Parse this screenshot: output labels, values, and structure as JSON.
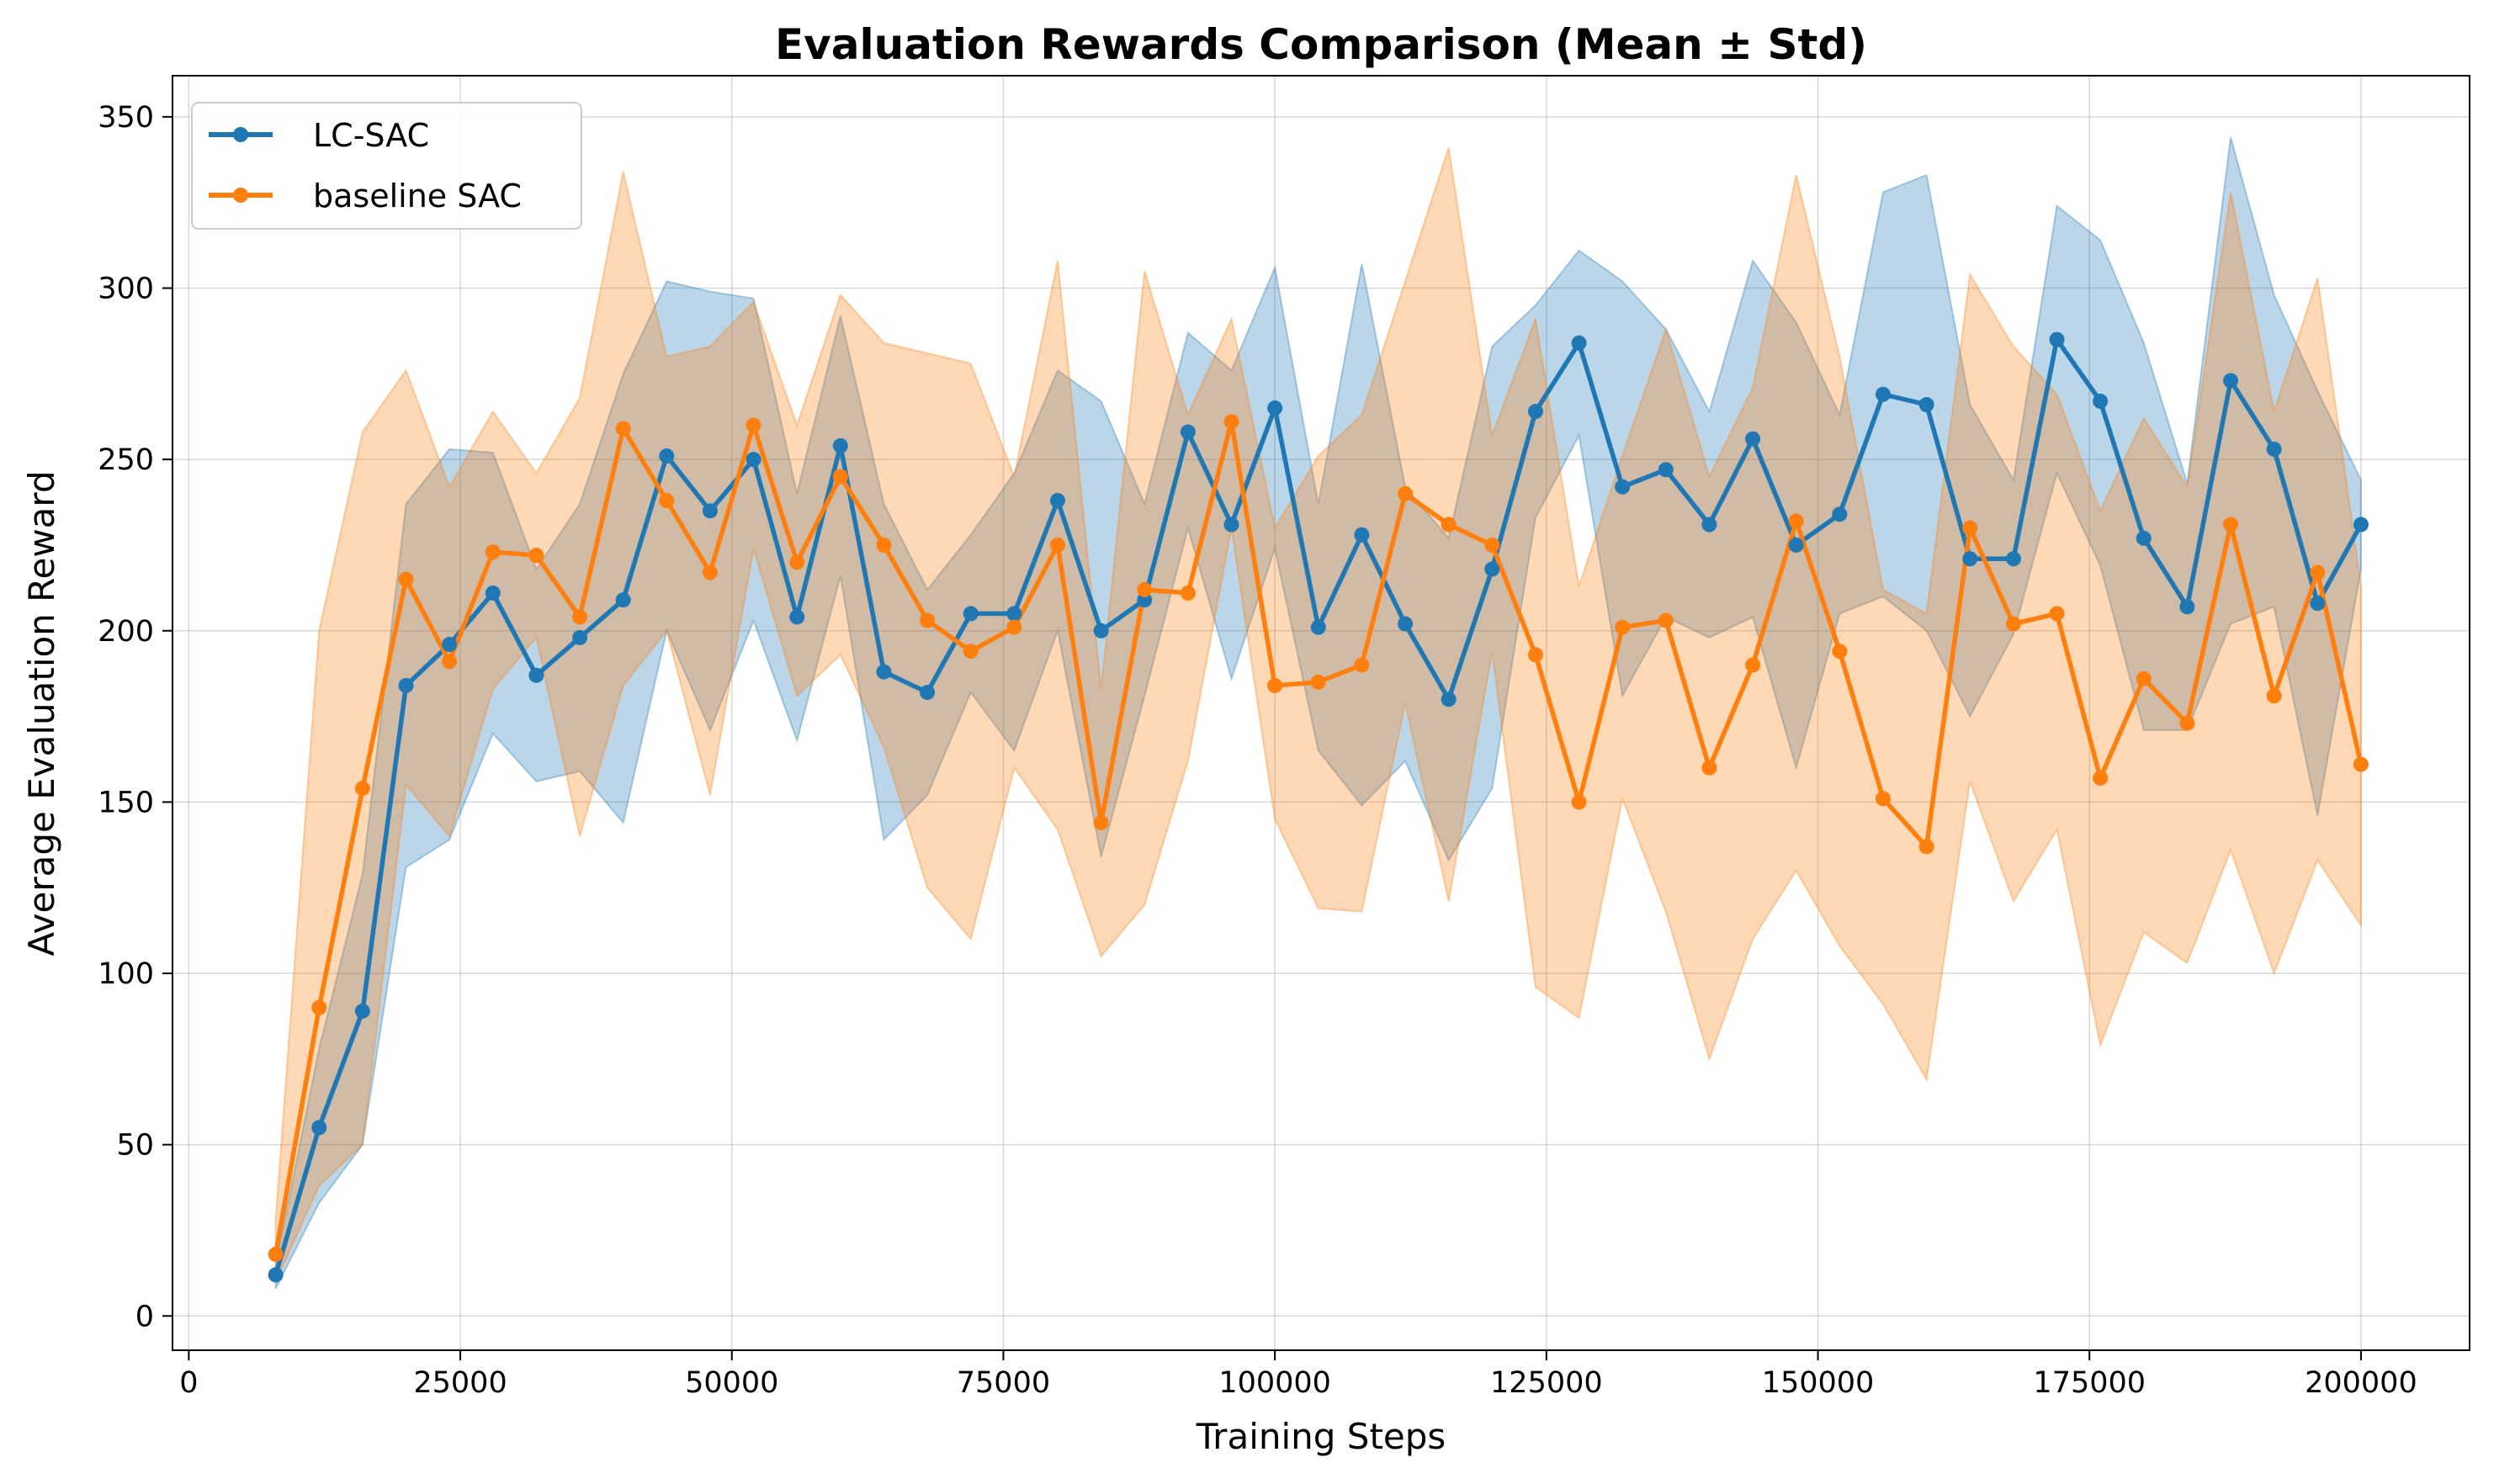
{
  "chart_data": {
    "type": "line",
    "title": "Evaluation Rewards Comparison (Mean ± Std)",
    "xlabel": "Training Steps",
    "ylabel": "Average Evaluation Reward",
    "xlim": [
      -1500,
      210000
    ],
    "ylim": [
      -10,
      362
    ],
    "xticks": [
      0,
      25000,
      50000,
      75000,
      100000,
      125000,
      150000,
      175000,
      200000
    ],
    "xtick_labels": [
      "0",
      "25000",
      "50000",
      "75000",
      "100000",
      "125000",
      "150000",
      "175000",
      "200000"
    ],
    "yticks": [
      0,
      50,
      100,
      150,
      200,
      250,
      300,
      350
    ],
    "ytick_labels": [
      "0",
      "50",
      "100",
      "150",
      "200",
      "250",
      "300",
      "350"
    ],
    "grid": true,
    "legend_position": "top-left",
    "x": [
      8000,
      12000,
      16000,
      20000,
      24000,
      28000,
      32000,
      36000,
      40000,
      44000,
      48000,
      52000,
      56000,
      60000,
      64000,
      68000,
      72000,
      76000,
      80000,
      84000,
      88000,
      92000,
      96000,
      100000,
      104000,
      108000,
      112000,
      116000,
      120000,
      124000,
      128000,
      132000,
      136000,
      140000,
      144000,
      148000,
      152000,
      156000,
      160000,
      164000,
      168000,
      172000,
      176000,
      180000,
      184000,
      188000,
      192000,
      196000,
      200000
    ],
    "series": [
      {
        "name": "LC-SAC",
        "color": "#1f77b4",
        "values": [
          12,
          55,
          89,
          184,
          196,
          211,
          187,
          198,
          209,
          251,
          235,
          250,
          204,
          254,
          188,
          182,
          205,
          205,
          238,
          200,
          209,
          258,
          231,
          265,
          201,
          228,
          202,
          180,
          218,
          264,
          284,
          242,
          247,
          231,
          256,
          225,
          234,
          269,
          266,
          221,
          221,
          285,
          267,
          227,
          207,
          273,
          253,
          208,
          231
        ],
        "upper": [
          15,
          78,
          129,
          237,
          253,
          252,
          218,
          237,
          275,
          302,
          299,
          297,
          240,
          292,
          237,
          212,
          228,
          246,
          276,
          267,
          237,
          287,
          276,
          306,
          237,
          307,
          242,
          227,
          283,
          295,
          311,
          302,
          288,
          264,
          308,
          290,
          263,
          328,
          333,
          266,
          244,
          324,
          314,
          284,
          243,
          344,
          298,
          270,
          244
        ],
        "lower": [
          8,
          33,
          50,
          131,
          139,
          170,
          156,
          159,
          144,
          200,
          171,
          203,
          168,
          216,
          139,
          152,
          182,
          165,
          200,
          134,
          181,
          230,
          186,
          224,
          165,
          149,
          162,
          133,
          154,
          233,
          257,
          181,
          204,
          198,
          204,
          160,
          205,
          210,
          200,
          175,
          199,
          246,
          219,
          171,
          171,
          202,
          207,
          146,
          218
        ]
      },
      {
        "name": "baseline SAC",
        "color": "#ff7f0e",
        "values": [
          18,
          90,
          154,
          215,
          191,
          223,
          222,
          204,
          259,
          238,
          217,
          260,
          220,
          245,
          225,
          203,
          194,
          201,
          225,
          144,
          212,
          211,
          261,
          184,
          185,
          190,
          240,
          231,
          225,
          193,
          150,
          201,
          203,
          160,
          190,
          232,
          194,
          151,
          137,
          230,
          202,
          205,
          157,
          186,
          173,
          231,
          181,
          217,
          161
        ],
        "upper": [
          28,
          200,
          258,
          276,
          242,
          264,
          246,
          268,
          334,
          280,
          283,
          296,
          260,
          298,
          284,
          281,
          278,
          245,
          308,
          183,
          305,
          263,
          291,
          230,
          251,
          263,
          302,
          341,
          257,
          291,
          213,
          251,
          288,
          245,
          271,
          333,
          280,
          212,
          205,
          304,
          283,
          269,
          235,
          262,
          242,
          328,
          264,
          303,
          213
        ],
        "lower": [
          10,
          38,
          50,
          155,
          140,
          183,
          198,
          140,
          184,
          200,
          152,
          224,
          181,
          193,
          166,
          125,
          110,
          160,
          142,
          105,
          120,
          162,
          230,
          145,
          119,
          118,
          179,
          121,
          194,
          96,
          87,
          151,
          118,
          75,
          110,
          130,
          108,
          91,
          69,
          156,
          121,
          142,
          79,
          112,
          103,
          136,
          100,
          133,
          114
        ]
      }
    ]
  }
}
